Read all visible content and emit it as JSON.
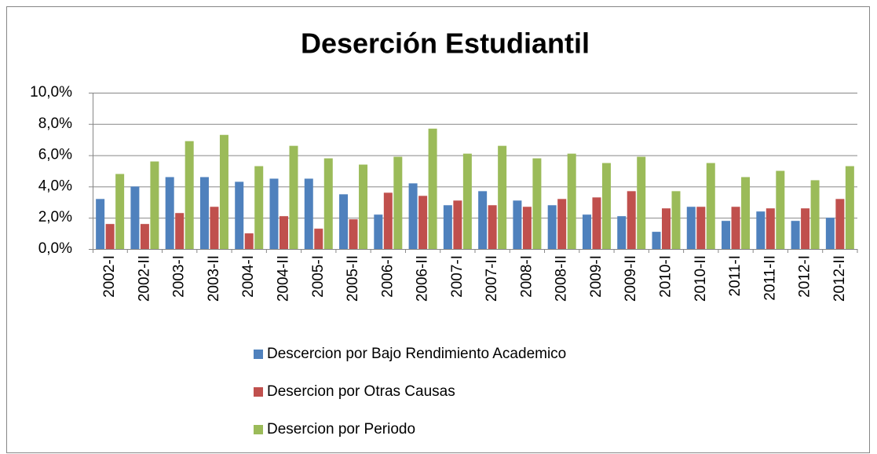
{
  "chart_data": {
    "type": "bar",
    "title": "Deserción Estudiantil",
    "categories": [
      "2002-I",
      "2002-II",
      "2003-I",
      "2003-II",
      "2004-I",
      "2004-II",
      "2005-I",
      "2005-II",
      "2006-I",
      "2006-II",
      "2007-I",
      "2007-II",
      "2008-I",
      "2008-II",
      "2009-I",
      "2009-II",
      "2010-I",
      "2010-II",
      "2011-I",
      "2011-II",
      "2012-I",
      "2012-II"
    ],
    "series": [
      {
        "name": "Descercion por Bajo Rendimiento Academico",
        "color": "#4f81bd",
        "values": [
          3.2,
          4.0,
          4.6,
          4.6,
          4.3,
          4.5,
          4.5,
          3.5,
          2.2,
          4.2,
          2.8,
          3.7,
          3.1,
          2.8,
          2.2,
          2.1,
          1.1,
          2.7,
          1.8,
          2.4,
          1.8,
          2.0
        ]
      },
      {
        "name": "Desercion por Otras Causas",
        "color": "#c0504d",
        "values": [
          1.6,
          1.6,
          2.3,
          2.7,
          1.0,
          2.1,
          1.3,
          1.9,
          3.6,
          3.4,
          3.1,
          2.8,
          2.7,
          3.2,
          3.3,
          3.7,
          2.6,
          2.7,
          2.7,
          2.6,
          2.6,
          3.2
        ]
      },
      {
        "name": "Desercion por Periodo",
        "color": "#9bbb59",
        "values": [
          4.8,
          5.6,
          6.9,
          7.3,
          5.3,
          6.6,
          5.8,
          5.4,
          5.9,
          7.7,
          6.1,
          6.6,
          5.8,
          6.1,
          5.5,
          5.9,
          3.7,
          5.5,
          4.6,
          5.0,
          4.4,
          5.3
        ]
      }
    ],
    "ylim": [
      0,
      10
    ],
    "yticks": [
      {
        "value": 0,
        "label": "0,0%"
      },
      {
        "value": 2,
        "label": "2,0%"
      },
      {
        "value": 4,
        "label": "4,0%"
      },
      {
        "value": 6,
        "label": "6,0%"
      },
      {
        "value": 8,
        "label": "8,0%"
      },
      {
        "value": 10,
        "label": "10,0%"
      }
    ],
    "grid": true,
    "legend": "bottom"
  }
}
